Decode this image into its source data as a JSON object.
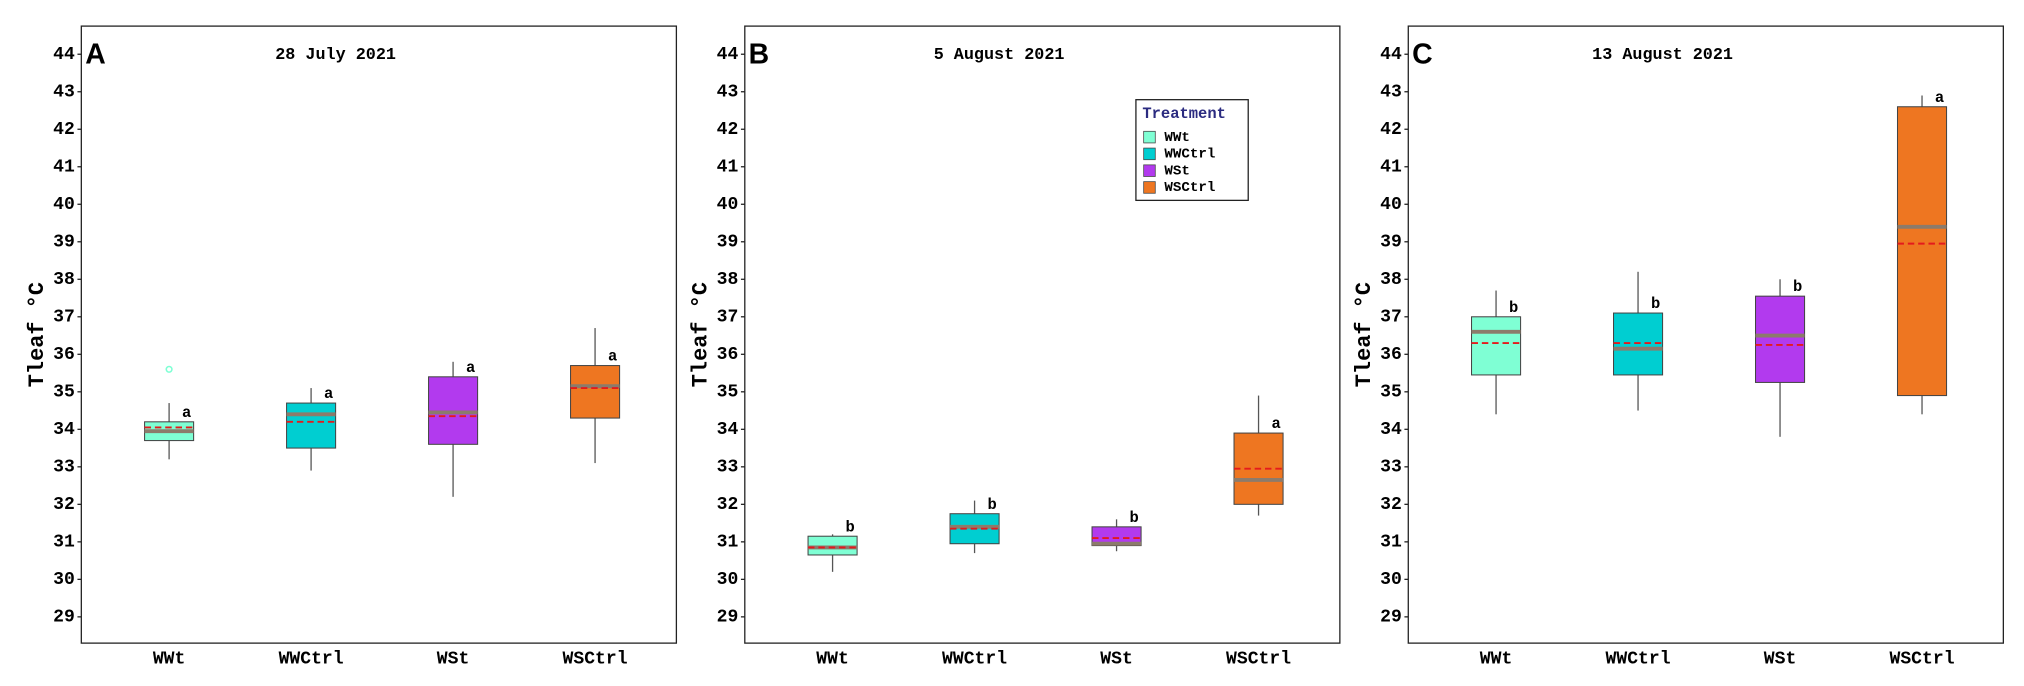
{
  "chart_data": [
    {
      "type": "box",
      "panel_label": "A",
      "title": "28 July 2021",
      "y_label": "Tleaf °C",
      "categories": [
        "WWt",
        "WWCtrl",
        "WSt",
        "WSCtrl"
      ],
      "colors": [
        "#7fffd4",
        "#00ced1",
        "#b23aee",
        "#ee7621"
      ],
      "min": [
        33.2,
        32.9,
        32.2,
        33.1
      ],
      "q1": [
        33.7,
        33.5,
        33.6,
        34.3
      ],
      "median": [
        33.95,
        34.4,
        34.45,
        35.15
      ],
      "q3": [
        34.2,
        34.7,
        35.4,
        35.7
      ],
      "max": [
        34.7,
        35.1,
        35.8,
        36.7
      ],
      "mean": [
        34.05,
        34.2,
        34.35,
        35.1
      ],
      "outliers": [
        [
          35.6
        ],
        [],
        [],
        []
      ],
      "letters": [
        "a",
        "a",
        "a",
        "a"
      ],
      "ylim": [
        28.3,
        44.75
      ],
      "yticks": [
        29,
        30,
        31,
        32,
        33,
        34,
        35,
        36,
        37,
        38,
        39,
        40,
        41,
        42,
        43,
        44
      ]
    },
    {
      "type": "box",
      "panel_label": "B",
      "title": "5 August 2021",
      "y_label": "Tleaf °C",
      "categories": [
        "WWt",
        "WWCtrl",
        "WSt",
        "WSCtrl"
      ],
      "colors": [
        "#7fffd4",
        "#00ced1",
        "#b23aee",
        "#ee7621"
      ],
      "min": [
        30.2,
        30.7,
        30.75,
        31.7
      ],
      "q1": [
        30.65,
        30.95,
        30.9,
        32.0
      ],
      "median": [
        30.85,
        31.4,
        30.95,
        32.65
      ],
      "q3": [
        31.15,
        31.75,
        31.4,
        33.9
      ],
      "max": [
        31.2,
        32.1,
        31.6,
        34.9
      ],
      "mean": [
        30.85,
        31.35,
        31.1,
        32.95
      ],
      "outliers": [
        [],
        [],
        [],
        []
      ],
      "letters": [
        "b",
        "b",
        "b",
        "a"
      ],
      "legend": {
        "title": "Treatment",
        "position": "upper right"
      },
      "ylim": [
        28.3,
        44.75
      ],
      "yticks": [
        29,
        30,
        31,
        32,
        33,
        34,
        35,
        36,
        37,
        38,
        39,
        40,
        41,
        42,
        43,
        44
      ]
    },
    {
      "type": "box",
      "panel_label": "C",
      "title": "13 August 2021",
      "y_label": "Tleaf °C",
      "categories": [
        "WWt",
        "WWCtrl",
        "WSt",
        "WSCtrl"
      ],
      "colors": [
        "#7fffd4",
        "#00ced1",
        "#b23aee",
        "#ee7621"
      ],
      "min": [
        34.4,
        34.5,
        33.8,
        34.4
      ],
      "q1": [
        35.45,
        35.45,
        35.25,
        34.9
      ],
      "median": [
        36.6,
        36.15,
        36.5,
        39.4
      ],
      "q3": [
        37.0,
        37.1,
        37.55,
        42.6
      ],
      "max": [
        37.7,
        38.2,
        38.0,
        42.9
      ],
      "mean": [
        36.3,
        36.3,
        36.25,
        38.95
      ],
      "outliers": [
        [],
        [],
        [],
        []
      ],
      "letters": [
        "b",
        "b",
        "b",
        "a"
      ],
      "ylim": [
        28.3,
        44.75
      ],
      "yticks": [
        29,
        30,
        31,
        32,
        33,
        34,
        35,
        36,
        37,
        38,
        39,
        40,
        41,
        42,
        43,
        44
      ]
    }
  ]
}
